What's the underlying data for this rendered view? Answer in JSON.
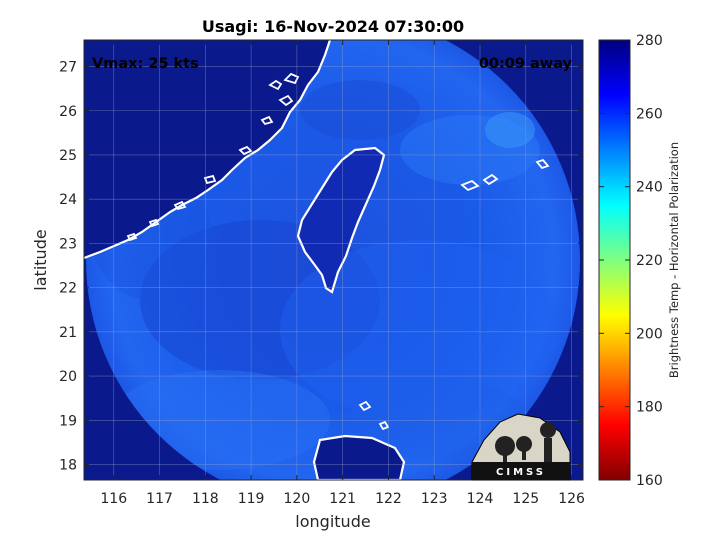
{
  "chart_data": {
    "type": "heatmap",
    "title": "Usagi: 16-Nov-2024 07:30:00",
    "xlabel": "longitude",
    "ylabel": "latitude",
    "xlim": [
      115.35,
      126.25
    ],
    "ylim": [
      17.65,
      27.6
    ],
    "x_ticks": [
      "116",
      "117",
      "118",
      "119",
      "120",
      "121",
      "122",
      "123",
      "124",
      "125",
      "126"
    ],
    "y_ticks": [
      "18",
      "19",
      "20",
      "21",
      "22",
      "23",
      "24",
      "25",
      "26",
      "27"
    ],
    "grid": true,
    "annotations": {
      "vmax": "Vmax: 25 kts",
      "time_offset": "00:09 away"
    },
    "colorbar": {
      "label": "Brightness Temp - Horizontal Polarization",
      "range": [
        160,
        280
      ],
      "ticks": [
        "160",
        "180",
        "200",
        "220",
        "240",
        "260",
        "280"
      ],
      "colormap": "jet",
      "colors": [
        "#800000",
        "#ff0000",
        "#ff8000",
        "#ffff00",
        "#80ff80",
        "#00ffff",
        "#0080ff",
        "#0000ff",
        "#000080"
      ]
    },
    "swath": {
      "center": [
        120.95,
        22.6
      ],
      "radius_deg_lon": 5.35,
      "radius_deg_lat": 5.65,
      "typical_value": 262,
      "background_value": 278
    },
    "logo_text": "CIMSS"
  }
}
